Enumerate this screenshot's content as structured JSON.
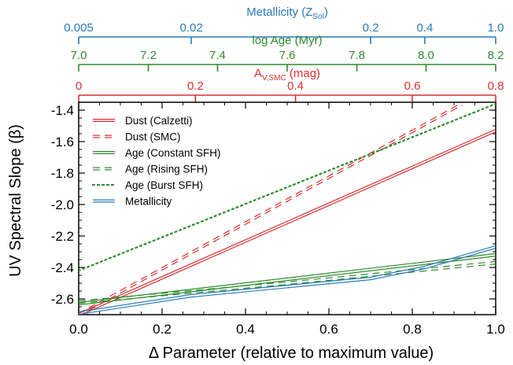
{
  "chart_data": {
    "type": "line",
    "xlabel": "Δ Parameter (relative to maximum value)",
    "ylabel": "UV Spectral Slope (β)",
    "xlim": [
      0.0,
      1.0
    ],
    "ylim": [
      -2.7,
      -1.35
    ],
    "x_ticks": [
      "0.0",
      "0.2",
      "0.4",
      "0.6",
      "0.8",
      "1.0"
    ],
    "y_ticks": [
      "-1.4",
      "-1.6",
      "-1.8",
      "-2.0",
      "-2.2",
      "-2.4",
      "-2.6"
    ],
    "y_tick_values": [
      -1.4,
      -1.6,
      -1.8,
      -2.0,
      -2.2,
      -2.4,
      -2.6
    ],
    "top_axes": [
      {
        "label": "Metallicity (Z_Sol)",
        "label_main": "Metallicity (Z",
        "label_sub": "Sol",
        "label_end": ")",
        "color": "#2a7ab8",
        "ticks": [
          {
            "label": "0.005",
            "x": 0.0
          },
          {
            "label": "0.02",
            "x": 0.27
          },
          {
            "label": "0.2",
            "x": 0.7
          },
          {
            "label": "0.4",
            "x": 0.83
          },
          {
            "label": "1.0",
            "x": 1.0
          }
        ]
      },
      {
        "label": "log Age (Myr)",
        "label_main": "log Age (Myr)",
        "label_sub": "",
        "label_end": "",
        "color": "#2e8b2e",
        "ticks": [
          {
            "label": "7.0",
            "x": 0.0
          },
          {
            "label": "7.2",
            "x": 0.167
          },
          {
            "label": "7.4",
            "x": 0.333
          },
          {
            "label": "7.6",
            "x": 0.5
          },
          {
            "label": "7.8",
            "x": 0.667
          },
          {
            "label": "8.0",
            "x": 0.833
          },
          {
            "label": "8.2",
            "x": 1.0
          }
        ]
      },
      {
        "label": "A_V,SMC (mag)",
        "label_main": "A",
        "label_sub": "V,SMC",
        "label_end": " (mag)",
        "color": "#d93030",
        "ticks": [
          {
            "label": "0",
            "x": 0.0
          },
          {
            "label": "0.2",
            "x": 0.28
          },
          {
            "label": "0.4",
            "x": 0.52
          },
          {
            "label": "0.6",
            "x": 0.8
          },
          {
            "label": "0.8",
            "x": 1.0
          }
        ]
      }
    ],
    "series": [
      {
        "name": "Dust (Calzetti)",
        "color": "#d93030",
        "style": "solid",
        "double": true,
        "x": [
          0.0,
          1.0
        ],
        "y": [
          -2.7,
          -1.53
        ]
      },
      {
        "name": "Dust (SMC)",
        "color": "#d93030",
        "style": "dashed",
        "double": true,
        "x": [
          0.0,
          0.92
        ],
        "y": [
          -2.7,
          -1.36
        ]
      },
      {
        "name": "Age (Constant SFH)",
        "color": "#2e8b2e",
        "style": "solid",
        "double": true,
        "x": [
          0.0,
          1.0
        ],
        "y": [
          -2.63,
          -2.32
        ]
      },
      {
        "name": "Age (Rising SFH)",
        "color": "#2e8b2e",
        "style": "dashed",
        "double": true,
        "x": [
          0.0,
          0.5,
          1.0
        ],
        "y": [
          -2.62,
          -2.5,
          -2.37
        ]
      },
      {
        "name": "Age (Burst SFH)",
        "color": "#2e8b2e",
        "style": "dotted",
        "double": false,
        "x": [
          0.0,
          1.0
        ],
        "y": [
          -2.42,
          -1.36
        ]
      },
      {
        "name": "Metallicity",
        "color": "#2a7ab8",
        "style": "solid",
        "double": true,
        "x": [
          0.0,
          0.27,
          0.7,
          0.83,
          1.0
        ],
        "y": [
          -2.69,
          -2.58,
          -2.47,
          -2.4,
          -2.27
        ]
      }
    ],
    "legend_position": "top-left",
    "grid": false
  }
}
